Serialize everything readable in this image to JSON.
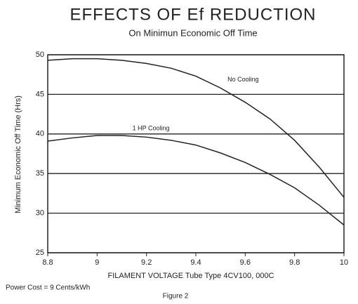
{
  "chart_data": {
    "type": "line",
    "title": "EFFECTS OF Ef REDUCTION",
    "subtitle": "On Minimun Economic Off Time",
    "x_label": "FILAMENT VOLTAGE  Tube Type 4CV100, 000C",
    "y_label": "Minimum Economic Off Time (Hrs)",
    "annotations": [
      "Power Cost = 9 Cents/kWh",
      "Figure 2"
    ],
    "x": [
      8.8,
      8.9,
      9.0,
      9.1,
      9.2,
      9.3,
      9.4,
      9.5,
      9.6,
      9.7,
      9.8,
      9.9,
      10.0
    ],
    "series": [
      {
        "name": "No Cooling",
        "color": "#222222",
        "values": [
          49.3,
          49.5,
          49.5,
          49.3,
          48.9,
          48.3,
          47.3,
          45.8,
          44.0,
          41.9,
          39.2,
          35.8,
          32.0
        ]
      },
      {
        "name": "1 HP Cooling",
        "color": "#222222",
        "values": [
          39.1,
          39.5,
          39.8,
          39.8,
          39.6,
          39.2,
          38.6,
          37.6,
          36.4,
          34.9,
          33.2,
          31.0,
          28.5
        ]
      }
    ],
    "xlim": [
      8.8,
      10.0
    ],
    "xticks": [
      8.8,
      9.0,
      9.2,
      9.4,
      9.6,
      9.8,
      10.0
    ],
    "ylim": [
      25,
      50
    ],
    "yticks": [
      25,
      30,
      35,
      40,
      45,
      50
    ],
    "grid": true
  }
}
